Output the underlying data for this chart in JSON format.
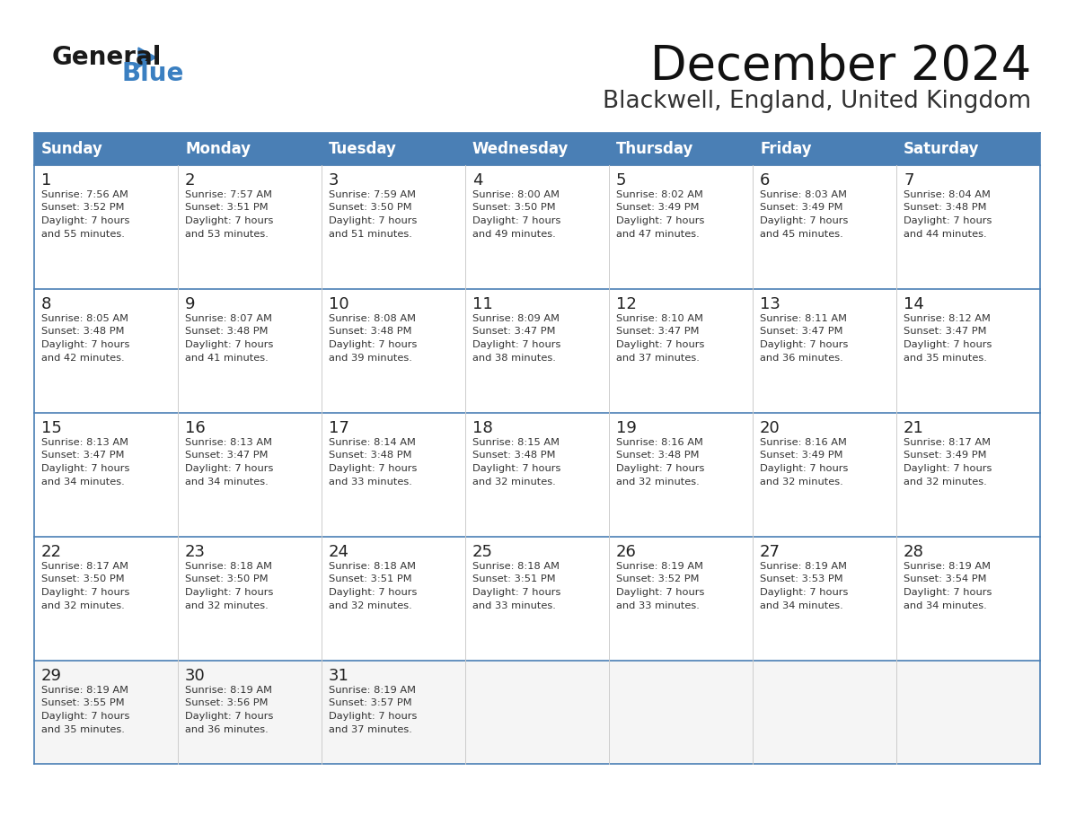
{
  "title": "December 2024",
  "subtitle": "Blackwell, England, United Kingdom",
  "days_of_week": [
    "Sunday",
    "Monday",
    "Tuesday",
    "Wednesday",
    "Thursday",
    "Friday",
    "Saturday"
  ],
  "header_bg": "#4a7fb5",
  "header_text": "#ffffff",
  "cell_bg": "#ffffff",
  "cell_bg_last": "#f0f0f0",
  "border_color": "#3a6ea8",
  "row_line_color": "#4a7fb5",
  "text_color": "#333333",
  "calendar_data": [
    [
      {
        "day": 1,
        "sunrise": "7:56 AM",
        "sunset": "3:52 PM",
        "daylight": "7 hours and 55 minutes."
      },
      {
        "day": 2,
        "sunrise": "7:57 AM",
        "sunset": "3:51 PM",
        "daylight": "7 hours and 53 minutes."
      },
      {
        "day": 3,
        "sunrise": "7:59 AM",
        "sunset": "3:50 PM",
        "daylight": "7 hours and 51 minutes."
      },
      {
        "day": 4,
        "sunrise": "8:00 AM",
        "sunset": "3:50 PM",
        "daylight": "7 hours and 49 minutes."
      },
      {
        "day": 5,
        "sunrise": "8:02 AM",
        "sunset": "3:49 PM",
        "daylight": "7 hours and 47 minutes."
      },
      {
        "day": 6,
        "sunrise": "8:03 AM",
        "sunset": "3:49 PM",
        "daylight": "7 hours and 45 minutes."
      },
      {
        "day": 7,
        "sunrise": "8:04 AM",
        "sunset": "3:48 PM",
        "daylight": "7 hours and 44 minutes."
      }
    ],
    [
      {
        "day": 8,
        "sunrise": "8:05 AM",
        "sunset": "3:48 PM",
        "daylight": "7 hours and 42 minutes."
      },
      {
        "day": 9,
        "sunrise": "8:07 AM",
        "sunset": "3:48 PM",
        "daylight": "7 hours and 41 minutes."
      },
      {
        "day": 10,
        "sunrise": "8:08 AM",
        "sunset": "3:48 PM",
        "daylight": "7 hours and 39 minutes."
      },
      {
        "day": 11,
        "sunrise": "8:09 AM",
        "sunset": "3:47 PM",
        "daylight": "7 hours and 38 minutes."
      },
      {
        "day": 12,
        "sunrise": "8:10 AM",
        "sunset": "3:47 PM",
        "daylight": "7 hours and 37 minutes."
      },
      {
        "day": 13,
        "sunrise": "8:11 AM",
        "sunset": "3:47 PM",
        "daylight": "7 hours and 36 minutes."
      },
      {
        "day": 14,
        "sunrise": "8:12 AM",
        "sunset": "3:47 PM",
        "daylight": "7 hours and 35 minutes."
      }
    ],
    [
      {
        "day": 15,
        "sunrise": "8:13 AM",
        "sunset": "3:47 PM",
        "daylight": "7 hours and 34 minutes."
      },
      {
        "day": 16,
        "sunrise": "8:13 AM",
        "sunset": "3:47 PM",
        "daylight": "7 hours and 34 minutes."
      },
      {
        "day": 17,
        "sunrise": "8:14 AM",
        "sunset": "3:48 PM",
        "daylight": "7 hours and 33 minutes."
      },
      {
        "day": 18,
        "sunrise": "8:15 AM",
        "sunset": "3:48 PM",
        "daylight": "7 hours and 32 minutes."
      },
      {
        "day": 19,
        "sunrise": "8:16 AM",
        "sunset": "3:48 PM",
        "daylight": "7 hours and 32 minutes."
      },
      {
        "day": 20,
        "sunrise": "8:16 AM",
        "sunset": "3:49 PM",
        "daylight": "7 hours and 32 minutes."
      },
      {
        "day": 21,
        "sunrise": "8:17 AM",
        "sunset": "3:49 PM",
        "daylight": "7 hours and 32 minutes."
      }
    ],
    [
      {
        "day": 22,
        "sunrise": "8:17 AM",
        "sunset": "3:50 PM",
        "daylight": "7 hours and 32 minutes."
      },
      {
        "day": 23,
        "sunrise": "8:18 AM",
        "sunset": "3:50 PM",
        "daylight": "7 hours and 32 minutes."
      },
      {
        "day": 24,
        "sunrise": "8:18 AM",
        "sunset": "3:51 PM",
        "daylight": "7 hours and 32 minutes."
      },
      {
        "day": 25,
        "sunrise": "8:18 AM",
        "sunset": "3:51 PM",
        "daylight": "7 hours and 33 minutes."
      },
      {
        "day": 26,
        "sunrise": "8:19 AM",
        "sunset": "3:52 PM",
        "daylight": "7 hours and 33 minutes."
      },
      {
        "day": 27,
        "sunrise": "8:19 AM",
        "sunset": "3:53 PM",
        "daylight": "7 hours and 34 minutes."
      },
      {
        "day": 28,
        "sunrise": "8:19 AM",
        "sunset": "3:54 PM",
        "daylight": "7 hours and 34 minutes."
      }
    ],
    [
      {
        "day": 29,
        "sunrise": "8:19 AM",
        "sunset": "3:55 PM",
        "daylight": "7 hours and 35 minutes."
      },
      {
        "day": 30,
        "sunrise": "8:19 AM",
        "sunset": "3:56 PM",
        "daylight": "7 hours and 36 minutes."
      },
      {
        "day": 31,
        "sunrise": "8:19 AM",
        "sunset": "3:57 PM",
        "daylight": "7 hours and 37 minutes."
      },
      null,
      null,
      null,
      null
    ]
  ],
  "logo_general_color": "#1a1a1a",
  "logo_blue_color": "#3a7fc1",
  "title_fontsize": 38,
  "subtitle_fontsize": 19,
  "header_fontsize": 12,
  "day_num_fontsize": 13,
  "cell_fontsize": 8.2
}
